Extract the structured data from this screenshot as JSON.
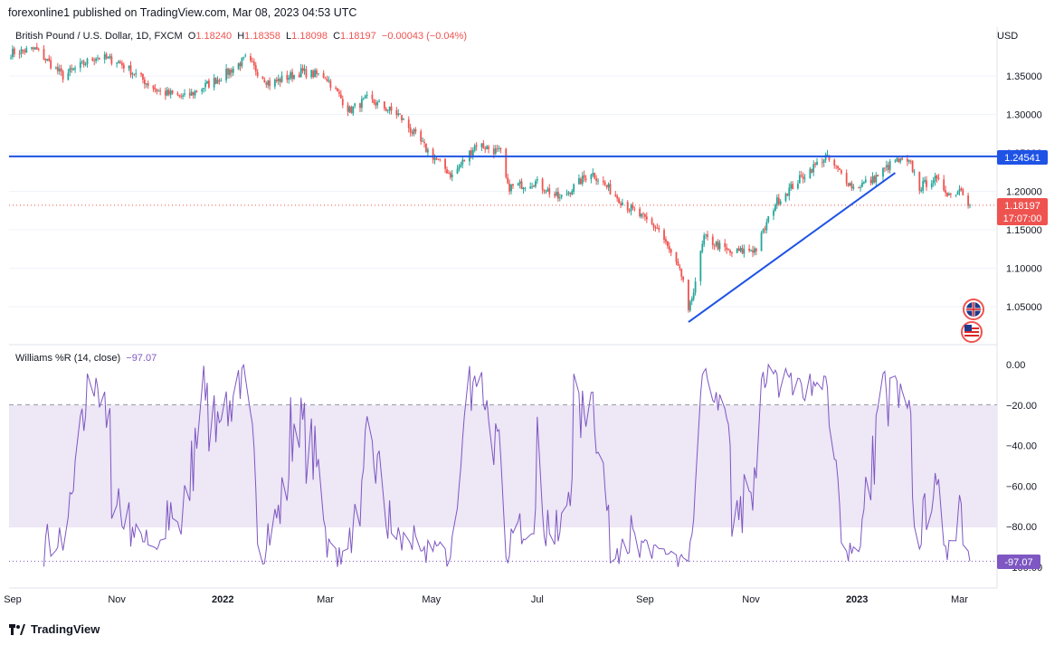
{
  "header": {
    "publisher_line": "forexonline1 published on TradingView.com, Mar 08, 2023 04:53 UTC"
  },
  "legend": {
    "symbol": "British Pound / U.S. Dollar, 1D, FXCM",
    "o_label": "O",
    "o": "1.18240",
    "h_label": "H",
    "h": "1.18358",
    "l_label": "L",
    "l": "1.18098",
    "c_label": "C",
    "c": "1.18197",
    "change": "−0.00043 (−0.04%)"
  },
  "currency_label": "USD",
  "price_badges": {
    "level": "1.24541",
    "last": "1.18197",
    "countdown": "17:07:00"
  },
  "indicator": {
    "name": "Williams %R (14, close)",
    "value": "−97.07",
    "badge": "-97.07"
  },
  "footer": {
    "brand": "TradingView"
  },
  "colors": {
    "up": "#26a69a",
    "down": "#ef5350",
    "line": "#1e53e5",
    "wr": "#7e57c2",
    "band": "#ede7f6"
  },
  "chart_data": [
    {
      "type": "candlestick",
      "yaxis_ticks": [
        "1.35000",
        "1.30000",
        "1.25000",
        "1.20000",
        "1.15000",
        "1.10000",
        "1.05000"
      ],
      "yaxis_tick_values": [
        1.35,
        1.3,
        1.25,
        1.2,
        1.15,
        1.1,
        1.05
      ],
      "ylim": [
        1.015,
        1.395
      ],
      "xaxis_ticks": [
        "Sep",
        "Nov",
        "2022",
        "Mar",
        "May",
        "Jul",
        "Sep",
        "Nov",
        "2023",
        "Mar"
      ],
      "horizontal_level": 1.24541,
      "trendline": [
        {
          "date": "2022-09-26",
          "price": 1.03
        },
        {
          "date": "2023-01-23",
          "price": 1.224
        }
      ],
      "last_price": 1.18197,
      "anchors": [
        [
          "2021-09-01",
          1.38
        ],
        [
          "2021-09-15",
          1.385
        ],
        [
          "2021-10-01",
          1.35
        ],
        [
          "2021-10-20",
          1.375
        ],
        [
          "2021-11-01",
          1.37
        ],
        [
          "2021-11-25",
          1.33
        ],
        [
          "2021-12-10",
          1.322
        ],
        [
          "2022-01-01",
          1.35
        ],
        [
          "2022-01-14",
          1.372
        ],
        [
          "2022-01-28",
          1.34
        ],
        [
          "2022-02-15",
          1.355
        ],
        [
          "2022-03-01",
          1.35
        ],
        [
          "2022-03-15",
          1.305
        ],
        [
          "2022-03-25",
          1.32
        ],
        [
          "2022-04-12",
          1.3
        ],
        [
          "2022-04-28",
          1.255
        ],
        [
          "2022-05-13",
          1.22
        ],
        [
          "2022-05-27",
          1.262
        ],
        [
          "2022-06-10",
          1.25
        ],
        [
          "2022-06-14",
          1.205
        ],
        [
          "2022-06-30",
          1.212
        ],
        [
          "2022-07-14",
          1.19
        ],
        [
          "2022-08-01",
          1.225
        ],
        [
          "2022-08-22",
          1.18
        ],
        [
          "2022-09-09",
          1.15
        ],
        [
          "2022-09-23",
          1.085
        ],
        [
          "2022-09-26",
          1.04
        ],
        [
          "2022-10-05",
          1.14
        ],
        [
          "2022-10-20",
          1.12
        ],
        [
          "2022-11-04",
          1.125
        ],
        [
          "2022-11-15",
          1.185
        ],
        [
          "2022-12-01",
          1.22
        ],
        [
          "2022-12-14",
          1.245
        ],
        [
          "2022-12-30",
          1.205
        ],
        [
          "2023-01-10",
          1.215
        ],
        [
          "2023-01-23",
          1.24
        ],
        [
          "2023-02-01",
          1.235
        ],
        [
          "2023-02-06",
          1.205
        ],
        [
          "2023-02-14",
          1.217
        ],
        [
          "2023-02-24",
          1.195
        ],
        [
          "2023-03-02",
          1.205
        ],
        [
          "2023-03-07",
          1.182
        ]
      ]
    },
    {
      "type": "line",
      "name": "Williams %R (14, close)",
      "yaxis_ticks": [
        "0.00",
        "−20.00",
        "−40.00",
        "−60.00",
        "−80.00",
        "−100.00"
      ],
      "yaxis_tick_values": [
        0,
        -20,
        -40,
        -60,
        -80,
        -100
      ],
      "ylim": [
        -100,
        0
      ],
      "dashed_levels": [
        -20,
        -50,
        -80
      ],
      "last_value": -97.07
    }
  ]
}
